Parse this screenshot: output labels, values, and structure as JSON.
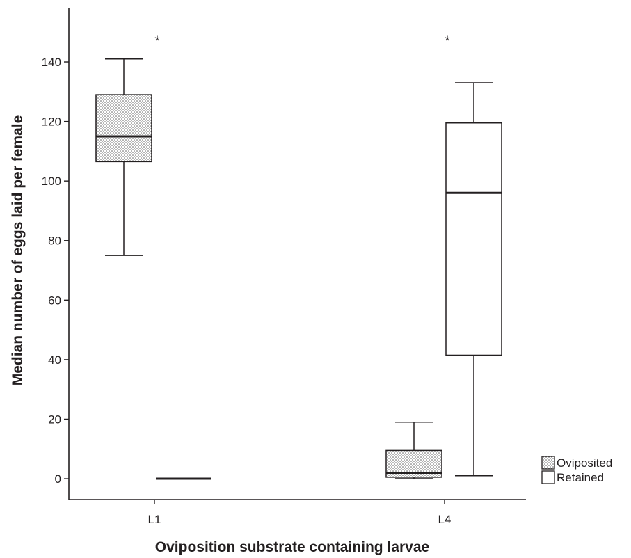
{
  "chart_data": {
    "type": "boxplot",
    "title": "",
    "xlabel": "Oviposition substrate containing larvae",
    "ylabel": "Median number of eggs laid per female",
    "ylim": [
      -7,
      158
    ],
    "yticks": [
      0,
      20,
      40,
      60,
      80,
      100,
      120,
      140
    ],
    "categories": [
      "L1",
      "L4"
    ],
    "grid": false,
    "legend": {
      "position": "bottom-right"
    },
    "series": [
      {
        "name": "Oviposited",
        "fill": "dotted",
        "boxes": [
          {
            "category": "L1",
            "min": 75,
            "q1": 106.5,
            "median": 115,
            "q3": 129,
            "max": 141
          },
          {
            "category": "L4",
            "min": 0,
            "q1": 0.5,
            "median": 2,
            "q3": 9.5,
            "max": 19
          }
        ]
      },
      {
        "name": "Retained",
        "fill": "white",
        "boxes": [
          {
            "category": "L1",
            "min": 0,
            "q1": 0,
            "median": 0,
            "q3": 0,
            "max": 0
          },
          {
            "category": "L4",
            "min": 1,
            "q1": 41.5,
            "median": 96,
            "q3": 119.5,
            "max": 133
          }
        ]
      }
    ],
    "annotations": [
      {
        "text": "*",
        "category": "L1",
        "y": 148
      },
      {
        "text": "*",
        "category": "L4",
        "y": 148
      }
    ],
    "colors": {
      "ink": "#231f20",
      "background": "#ffffff"
    }
  }
}
